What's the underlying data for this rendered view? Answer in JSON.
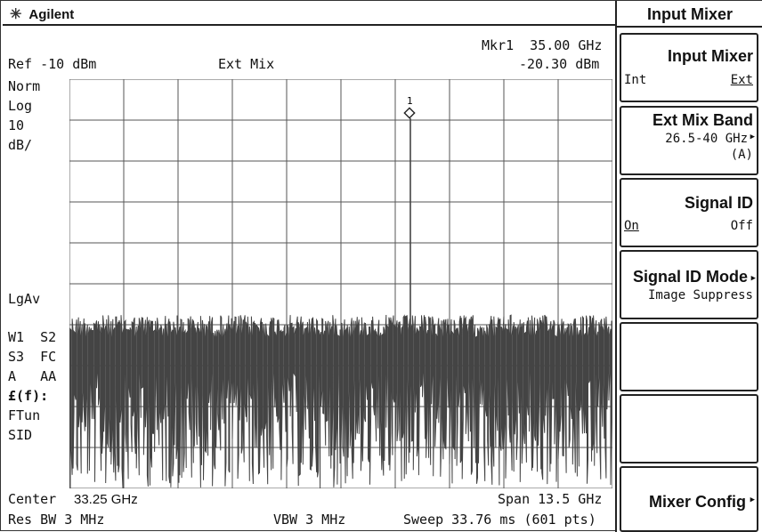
{
  "brand": {
    "name": "Agilent",
    "icon": "starburst-icon"
  },
  "header": {
    "ref": "Ref -10 dBm",
    "mode": "Ext Mix",
    "marker_label": "Mkr1  35.00 GHz",
    "marker_value": "-20.30 dBm"
  },
  "left_annotations": {
    "norm": "Norm",
    "log": "Log",
    "scale_value": "10",
    "scale_unit": "dB/",
    "lgav": "LgAv",
    "row1": "W1  S2",
    "row2": "S3  FC",
    "row3": "A   AA",
    "row4": "£(f):",
    "row5": "FTun",
    "row6": "SID"
  },
  "marker": {
    "id": "1",
    "freq_ghz": 35.0,
    "level_dbm": -20.3
  },
  "footer": {
    "center_label": "Center",
    "center_value": "33.25 GHz",
    "span": "Span 13.5 GHz",
    "res_bw": "Res BW 3 MHz",
    "vbw": "VBW 3 MHz",
    "sweep": "Sweep 33.76 ms (601 pts)"
  },
  "menu": {
    "title": "Input Mixer",
    "keys": [
      {
        "label": "Input Mixer",
        "left": "Int",
        "right": "Ext"
      },
      {
        "label": "Ext Mix Band",
        "line1": "26.5-40 GHz",
        "line2": "(A)"
      },
      {
        "label": "Signal ID",
        "left": "On",
        "right": "Off"
      },
      {
        "label": "Signal ID Mode",
        "line1": "Image Suppress"
      },
      {
        "label": ""
      },
      {
        "label": ""
      },
      {
        "label": "Mixer Config"
      }
    ]
  },
  "colors": {
    "background": "#ffffff",
    "trace": "#444444",
    "grid": "#555555",
    "text": "#111111"
  }
}
